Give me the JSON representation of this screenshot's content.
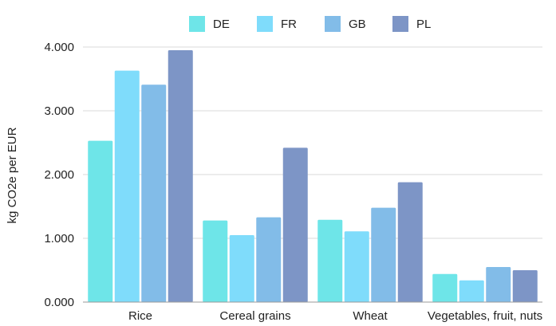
{
  "chart_data": {
    "type": "bar",
    "ylabel": "kg CO2e per EUR",
    "ylim": [
      0,
      4
    ],
    "yticks": [
      {
        "value": 0,
        "label": "0.000"
      },
      {
        "value": 1,
        "label": "1.000"
      },
      {
        "value": 2,
        "label": "2.000"
      },
      {
        "value": 3,
        "label": "3.000"
      },
      {
        "value": 4,
        "label": "4.000"
      }
    ],
    "categories": [
      "Rice",
      "Cereal grains",
      "Wheat",
      "Vegetables, fruit, nuts"
    ],
    "series": [
      {
        "name": "DE",
        "color": "#6ee5e8",
        "values": [
          2.53,
          1.28,
          1.29,
          0.44
        ]
      },
      {
        "name": "FR",
        "color": "#7fdcfb",
        "values": [
          3.63,
          1.05,
          1.11,
          0.34
        ]
      },
      {
        "name": "GB",
        "color": "#82bce8",
        "values": [
          3.41,
          1.33,
          1.48,
          0.55
        ]
      },
      {
        "name": "PL",
        "color": "#7d95c6",
        "values": [
          3.95,
          2.42,
          1.88,
          0.5
        ]
      }
    ],
    "grid": true,
    "legend_position": "top-center"
  }
}
